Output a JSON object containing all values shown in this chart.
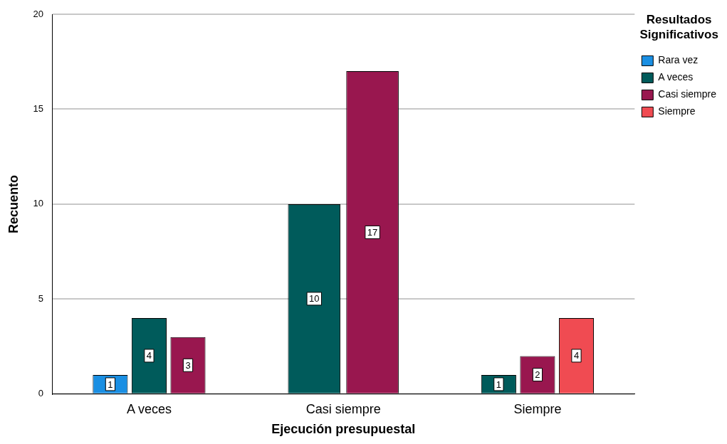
{
  "chart_data": {
    "type": "bar",
    "xlabel": "Ejecución presupuestal",
    "ylabel": "Recuento",
    "legend_title": "Resultados Significativos",
    "categories": [
      "A veces",
      "Casi siempre",
      "Siempre"
    ],
    "series": [
      {
        "name": "Rara vez",
        "color": "#1a8fe3",
        "values": [
          1,
          null,
          null
        ]
      },
      {
        "name": "A veces",
        "color": "#005b5b",
        "values": [
          4,
          10,
          1
        ]
      },
      {
        "name": "Casi siempre",
        "color": "#99174f",
        "values": [
          3,
          17,
          2
        ]
      },
      {
        "name": "Siempre",
        "color": "#f04b52",
        "values": [
          null,
          null,
          4
        ]
      }
    ],
    "ylim": [
      0,
      20
    ],
    "yticks": [
      0,
      5,
      10,
      15,
      20
    ],
    "grid": "y",
    "legend": "top right",
    "data_labels": true
  }
}
